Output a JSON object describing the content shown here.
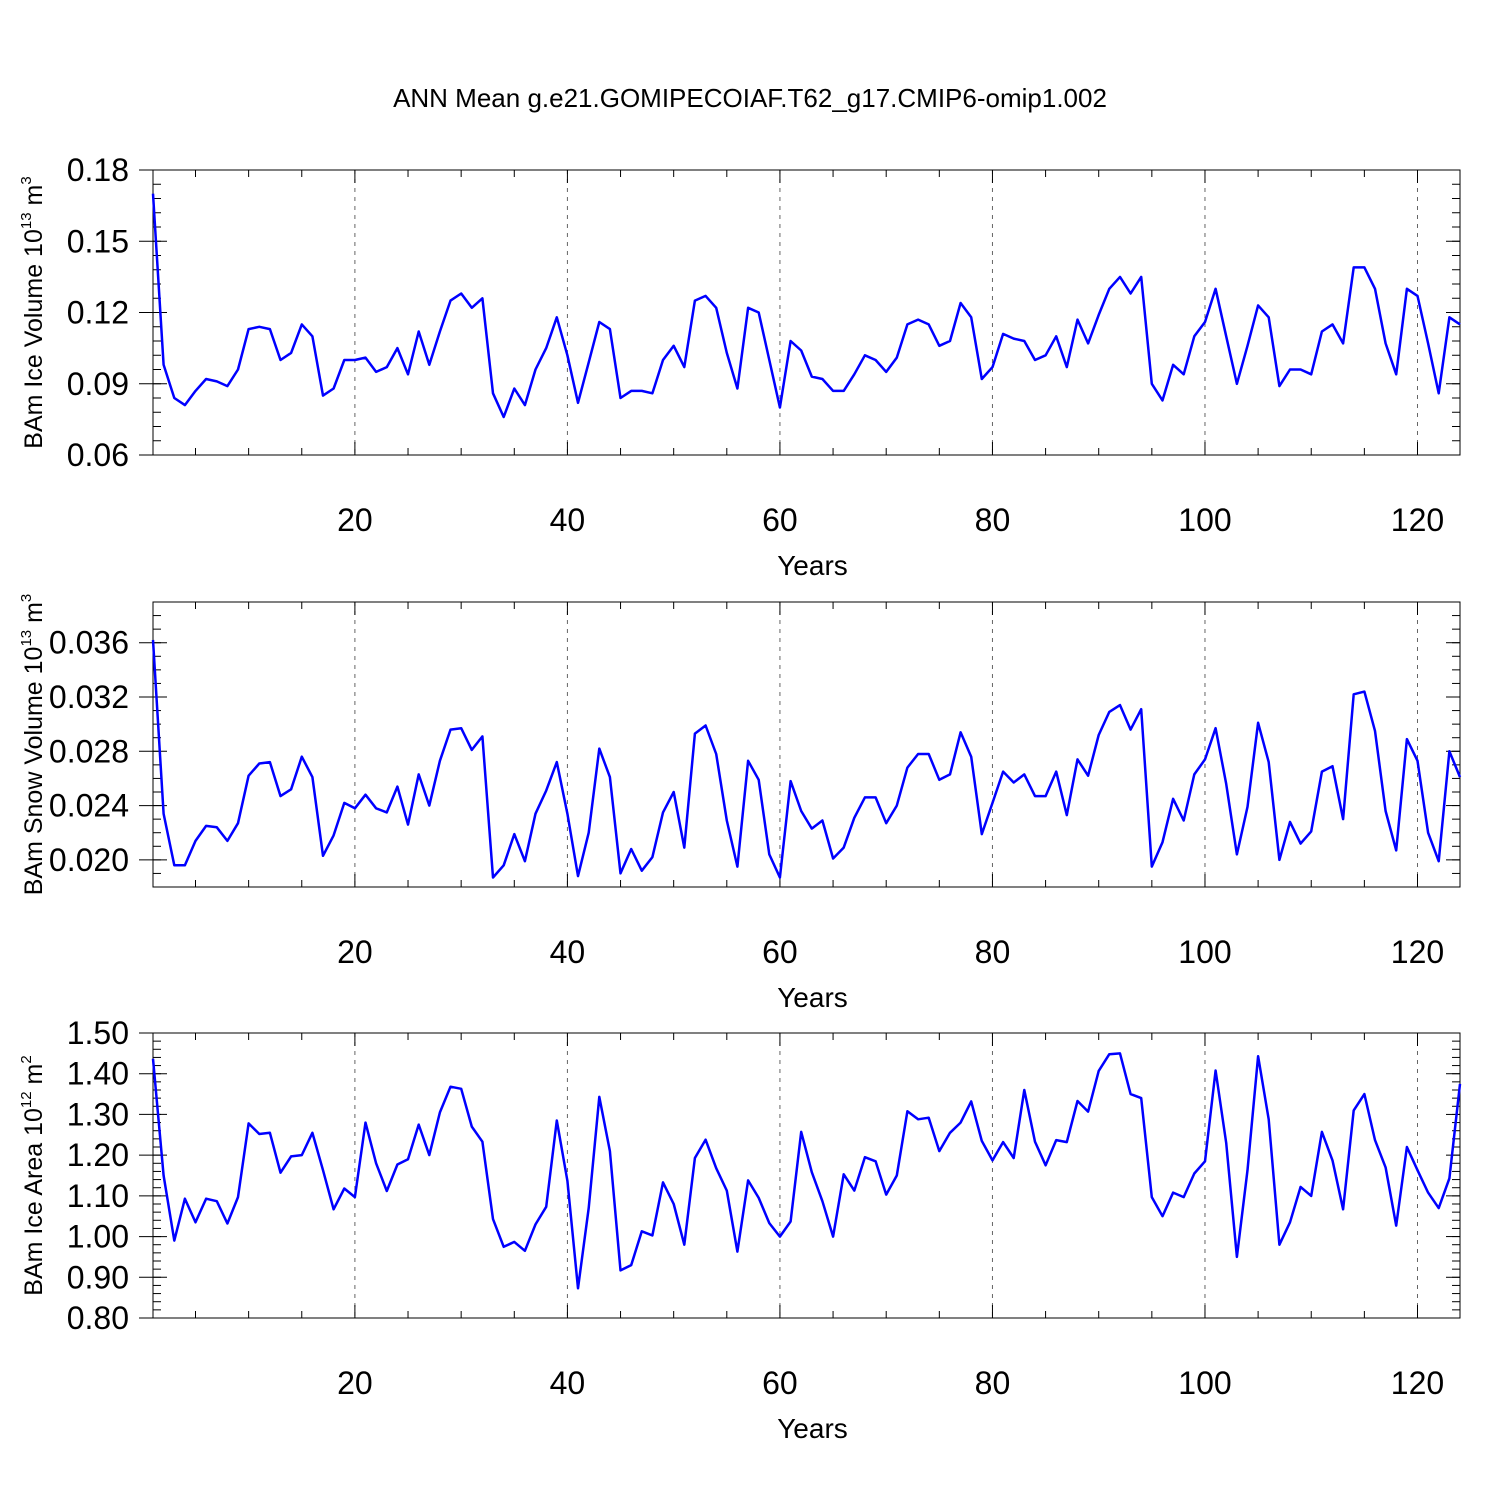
{
  "title": "ANN Mean g.e21.GOMIPECOIAF.T62_g17.CMIP6-omip1.002",
  "chart_data": [
    {
      "type": "line",
      "ylabel": {
        "text": "BAm Ice Volume 10",
        "exp": "13",
        "unit": " m",
        "unit_exp": "3"
      },
      "xlabel": "Years",
      "xlim": [
        1,
        124
      ],
      "xticks": [
        20,
        40,
        60,
        80,
        100,
        120
      ],
      "ylim": [
        0.06,
        0.18
      ],
      "yticks": [
        0.06,
        0.09,
        0.12,
        0.15,
        0.18
      ],
      "ytick_labels": [
        "0.06",
        "0.09",
        "0.12",
        "0.15",
        "0.18"
      ],
      "ydecimals": 2,
      "minor_step": 0.006,
      "grid": "vertical-dashed",
      "color": "#0000ff",
      "values": [
        0.17,
        0.098,
        0.084,
        0.081,
        0.087,
        0.092,
        0.091,
        0.089,
        0.096,
        0.113,
        0.114,
        0.113,
        0.1,
        0.103,
        0.115,
        0.11,
        0.085,
        0.088,
        0.1,
        0.1,
        0.101,
        0.095,
        0.097,
        0.105,
        0.094,
        0.112,
        0.098,
        0.112,
        0.125,
        0.128,
        0.122,
        0.126,
        0.086,
        0.076,
        0.088,
        0.081,
        0.096,
        0.105,
        0.118,
        0.102,
        0.082,
        0.099,
        0.116,
        0.113,
        0.084,
        0.087,
        0.087,
        0.086,
        0.1,
        0.106,
        0.097,
        0.125,
        0.127,
        0.122,
        0.103,
        0.088,
        0.122,
        0.12,
        0.1,
        0.08,
        0.108,
        0.104,
        0.093,
        0.092,
        0.087,
        0.087,
        0.094,
        0.102,
        0.1,
        0.095,
        0.101,
        0.115,
        0.117,
        0.115,
        0.106,
        0.108,
        0.124,
        0.118,
        0.092,
        0.097,
        0.111,
        0.109,
        0.108,
        0.1,
        0.102,
        0.11,
        0.097,
        0.117,
        0.107,
        0.119,
        0.13,
        0.135,
        0.128,
        0.135,
        0.09,
        0.083,
        0.098,
        0.094,
        0.11,
        0.116,
        0.13,
        0.11,
        0.09,
        0.106,
        0.123,
        0.118,
        0.089,
        0.096,
        0.096,
        0.094,
        0.112,
        0.115,
        0.107,
        0.139,
        0.139,
        0.13,
        0.107,
        0.094,
        0.13,
        0.127,
        0.107,
        0.086,
        0.118,
        0.115
      ]
    },
    {
      "type": "line",
      "ylabel": {
        "text": "BAm Snow Volume 10",
        "exp": "13",
        "unit": " m",
        "unit_exp": "3"
      },
      "xlabel": "Years",
      "xlim": [
        1,
        124
      ],
      "xticks": [
        20,
        40,
        60,
        80,
        100,
        120
      ],
      "ylim": [
        0.018,
        0.039
      ],
      "yticks": [
        0.02,
        0.024,
        0.028,
        0.032,
        0.036
      ],
      "ytick_labels": [
        "0.020",
        "0.024",
        "0.028",
        "0.032",
        "0.036"
      ],
      "ydecimals": 3,
      "minor_step": 0.001,
      "grid": "vertical-dashed",
      "color": "#0000ff",
      "values": [
        0.0362,
        0.0234,
        0.0196,
        0.0196,
        0.0214,
        0.0225,
        0.0224,
        0.0214,
        0.0227,
        0.0262,
        0.0271,
        0.0272,
        0.0247,
        0.0252,
        0.0276,
        0.0261,
        0.0203,
        0.0218,
        0.0242,
        0.0238,
        0.0248,
        0.0238,
        0.0235,
        0.0254,
        0.0226,
        0.0263,
        0.024,
        0.0273,
        0.0296,
        0.0297,
        0.0281,
        0.0291,
        0.0187,
        0.0196,
        0.0219,
        0.0199,
        0.0234,
        0.0251,
        0.0272,
        0.0234,
        0.0188,
        0.022,
        0.0282,
        0.0261,
        0.019,
        0.0208,
        0.0192,
        0.0202,
        0.0235,
        0.025,
        0.0209,
        0.0293,
        0.0299,
        0.0278,
        0.0229,
        0.0195,
        0.0273,
        0.0259,
        0.0204,
        0.0187,
        0.0258,
        0.0236,
        0.0223,
        0.0229,
        0.0201,
        0.0209,
        0.0231,
        0.0246,
        0.0246,
        0.0227,
        0.024,
        0.0268,
        0.0278,
        0.0278,
        0.0259,
        0.0263,
        0.0294,
        0.0276,
        0.0219,
        0.0242,
        0.0265,
        0.0257,
        0.0263,
        0.0247,
        0.0247,
        0.0265,
        0.0233,
        0.0274,
        0.0262,
        0.0292,
        0.0309,
        0.0314,
        0.0296,
        0.0311,
        0.0195,
        0.0213,
        0.0245,
        0.0229,
        0.0263,
        0.0274,
        0.0297,
        0.0256,
        0.0204,
        0.0239,
        0.0301,
        0.0272,
        0.02,
        0.0228,
        0.0212,
        0.0221,
        0.0265,
        0.0269,
        0.023,
        0.0322,
        0.0324,
        0.0295,
        0.0236,
        0.0207,
        0.0289,
        0.0273,
        0.022,
        0.0199,
        0.028,
        0.0261
      ]
    },
    {
      "type": "line",
      "ylabel": {
        "text": "BAm Ice Area 10",
        "exp": "12",
        "unit": " m",
        "unit_exp": "2"
      },
      "xlabel": "Years",
      "xlim": [
        1,
        124
      ],
      "xticks": [
        20,
        40,
        60,
        80,
        100,
        120
      ],
      "ylim": [
        0.8,
        1.5
      ],
      "yticks": [
        0.8,
        0.9,
        1.0,
        1.1,
        1.2,
        1.3,
        1.4,
        1.5
      ],
      "ytick_labels": [
        "0.80",
        "0.90",
        "1.00",
        "1.10",
        "1.20",
        "1.30",
        "1.40",
        "1.50"
      ],
      "ydecimals": 2,
      "minor_step": 0.02,
      "grid": "vertical-dashed",
      "color": "#0000ff",
      "values": [
        1.437,
        1.15,
        0.99,
        1.093,
        1.035,
        1.093,
        1.087,
        1.032,
        1.097,
        1.278,
        1.252,
        1.255,
        1.157,
        1.197,
        1.2,
        1.255,
        1.163,
        1.067,
        1.118,
        1.097,
        1.28,
        1.18,
        1.112,
        1.177,
        1.19,
        1.275,
        1.2,
        1.305,
        1.368,
        1.363,
        1.27,
        1.233,
        1.043,
        0.975,
        0.987,
        0.965,
        1.03,
        1.073,
        1.285,
        1.137,
        0.873,
        1.07,
        1.343,
        1.21,
        0.917,
        0.93,
        1.013,
        1.003,
        1.133,
        1.08,
        0.98,
        1.193,
        1.238,
        1.168,
        1.113,
        0.963,
        1.138,
        1.095,
        1.033,
        1.0,
        1.037,
        1.257,
        1.158,
        1.087,
        1.0,
        1.153,
        1.113,
        1.195,
        1.185,
        1.103,
        1.15,
        1.308,
        1.288,
        1.292,
        1.21,
        1.255,
        1.28,
        1.332,
        1.235,
        1.187,
        1.232,
        1.193,
        1.36,
        1.233,
        1.175,
        1.237,
        1.232,
        1.333,
        1.307,
        1.407,
        1.448,
        1.45,
        1.35,
        1.34,
        1.097,
        1.05,
        1.108,
        1.097,
        1.155,
        1.185,
        1.408,
        1.23,
        0.95,
        1.163,
        1.443,
        1.288,
        0.98,
        1.035,
        1.122,
        1.1,
        1.257,
        1.187,
        1.067,
        1.31,
        1.35,
        1.237,
        1.17,
        1.027,
        1.22,
        1.163,
        1.108,
        1.07,
        1.143,
        1.375
      ]
    }
  ]
}
